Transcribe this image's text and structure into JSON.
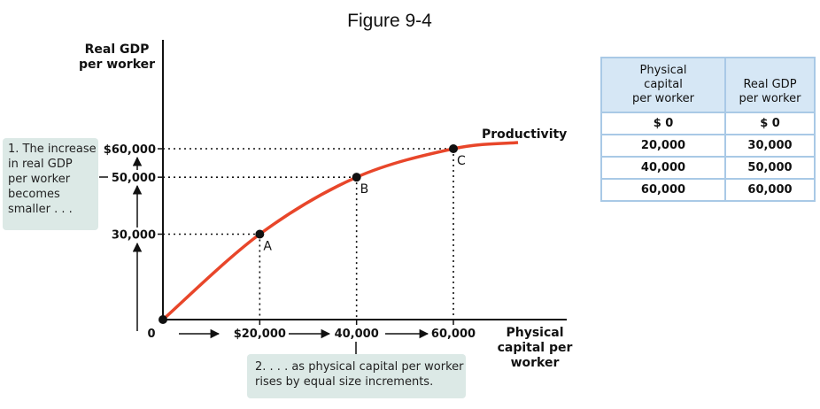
{
  "figure_title": "Figure 9-4",
  "chart_data": {
    "type": "line",
    "title": "",
    "xlabel": [
      "Physical",
      "capital per",
      "worker"
    ],
    "ylabel": [
      "Real GDP",
      "per worker"
    ],
    "xlim": [
      0,
      60000
    ],
    "ylim": [
      0,
      60000
    ],
    "x_tick_labels": [
      "$20,000",
      "40,000",
      "60,000"
    ],
    "y_tick_labels": [
      "30,000",
      "50,000",
      "$60,000"
    ],
    "origin_label": "0",
    "series": [
      {
        "name": "Productivity",
        "x": [
          0,
          20000,
          40000,
          60000
        ],
        "y": [
          0,
          30000,
          50000,
          60000
        ]
      }
    ],
    "points": [
      {
        "label": "A",
        "x": 20000,
        "y": 30000
      },
      {
        "label": "B",
        "x": 40000,
        "y": 50000
      },
      {
        "label": "C",
        "x": 60000,
        "y": 60000
      }
    ],
    "curve_color": "#e8462a",
    "grid": false
  },
  "annotations": {
    "left_note": [
      "1. The increase",
      "in real GDP",
      "per worker",
      "becomes",
      "smaller . . ."
    ],
    "bottom_note": [
      "2. . . . as physical capital per worker",
      "rises by equal size increments."
    ]
  },
  "table": {
    "headers": [
      [
        "Physical",
        "capital",
        "per worker"
      ],
      [
        "Real GDP",
        "per worker"
      ]
    ],
    "rows": [
      [
        "$  0",
        "$  0"
      ],
      [
        "20,000",
        "30,000"
      ],
      [
        "40,000",
        "50,000"
      ],
      [
        "60,000",
        "60,000"
      ]
    ]
  },
  "colors": {
    "annotation_bg": "#dce9e6",
    "table_header_bg": "#d6e7f5",
    "table_border": "#a9c9e6"
  }
}
